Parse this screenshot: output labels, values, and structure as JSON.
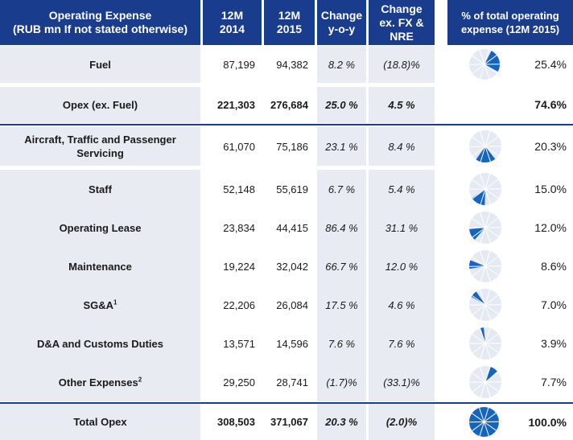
{
  "header": {
    "col_expense": "Operating Expense\n(RUB mn If not stated otherwise)",
    "col_2014": "12M\n2014",
    "col_2015": "12M\n2015",
    "col_change": "Change\ny-o-y",
    "col_change_fx": "Change\nex. FX &\nNRE",
    "col_share": "% of total operating\nexpense (12M 2015)"
  },
  "rows": [
    {
      "label": "Fuel",
      "sup": "",
      "v2014": "87,199",
      "v2015": "94,382",
      "change": "8.2 %",
      "change_fx": "(18.8)%",
      "share": "25.4%",
      "share_value": 25.4,
      "bold": false
    },
    {
      "label": "Opex (ex. Fuel)",
      "sup": "",
      "v2014": "221,303",
      "v2015": "276,684",
      "change": "25.0 %",
      "change_fx": "4.5 %",
      "share": "74.6%",
      "share_value": 74.6,
      "bold": true
    },
    {
      "label": "Aircraft, Traffic and Passenger Servicing",
      "sup": "",
      "v2014": "61,070",
      "v2015": "75,186",
      "change": "23.1 %",
      "change_fx": "8.4 %",
      "share": "20.3%",
      "share_value": 20.3,
      "bold": false
    },
    {
      "label": "Staff",
      "sup": "",
      "v2014": "52,148",
      "v2015": "55,619",
      "change": "6.7 %",
      "change_fx": "5.4 %",
      "share": "15.0%",
      "share_value": 15.0,
      "bold": false
    },
    {
      "label": "Operating Lease",
      "sup": "",
      "v2014": "23,834",
      "v2015": "44,415",
      "change": "86.4 %",
      "change_fx": "31.1 %",
      "share": "12.0%",
      "share_value": 12.0,
      "bold": false
    },
    {
      "label": "Maintenance",
      "sup": "",
      "v2014": "19,224",
      "v2015": "32,042",
      "change": "66.7 %",
      "change_fx": "12.0 %",
      "share": "8.6%",
      "share_value": 8.6,
      "bold": false
    },
    {
      "label": "SG&A",
      "sup": "1",
      "v2014": "22,206",
      "v2015": "26,084",
      "change": "17.5 %",
      "change_fx": "4.6 %",
      "share": "7.0%",
      "share_value": 7.0,
      "bold": false
    },
    {
      "label": "D&A and Customs Duties",
      "sup": "",
      "v2014": "13,571",
      "v2015": "14,596",
      "change": "7.6 %",
      "change_fx": "7.6 %",
      "share": "3.9%",
      "share_value": 3.9,
      "bold": false
    },
    {
      "label": "Other Expenses",
      "sup": "2",
      "v2014": "29,250",
      "v2015": "28,741",
      "change": "(1.7)%",
      "change_fx": "(33.1)%",
      "share": "7.7%",
      "share_value": 7.7,
      "bold": false
    },
    {
      "label": "Total Opex",
      "sup": "",
      "v2014": "308,503",
      "v2015": "371,067",
      "change": "20.3 %",
      "change_fx": "(2.0)%",
      "share": "100.0%",
      "share_value": 100.0,
      "bold": true
    }
  ],
  "colors": {
    "header": "#1a3c8c",
    "shade": "#e8ecf2",
    "pie_fill": "#1565c0",
    "pie_base": "#e4e9f2"
  }
}
